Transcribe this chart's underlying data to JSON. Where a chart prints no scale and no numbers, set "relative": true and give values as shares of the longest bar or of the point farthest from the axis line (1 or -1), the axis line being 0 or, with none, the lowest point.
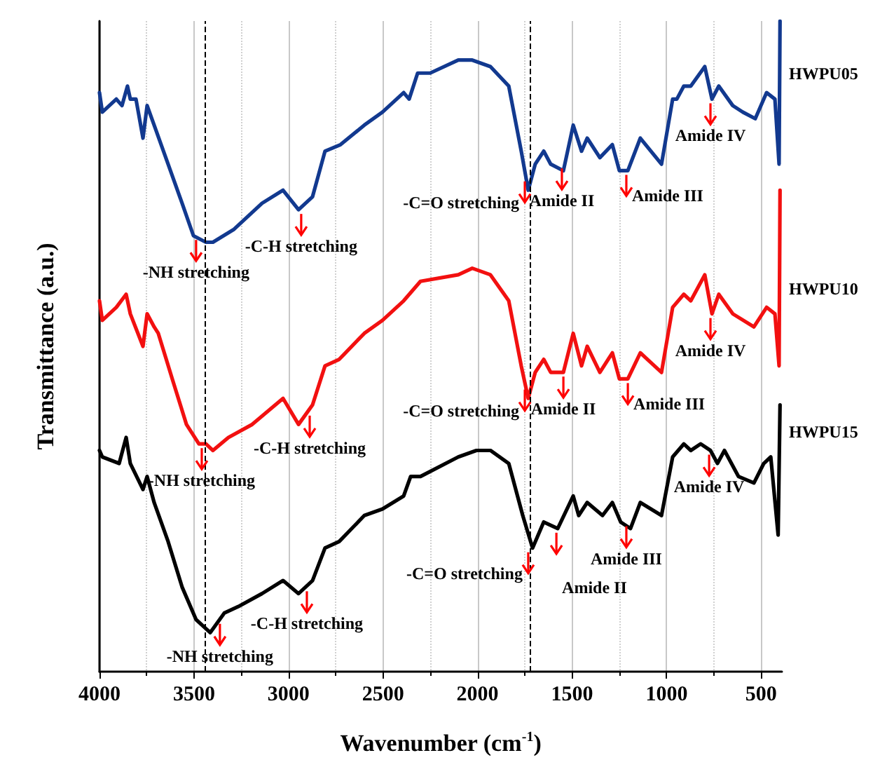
{
  "chart_data": {
    "type": "line",
    "relative": true,
    "marker": "none",
    "grid": "x",
    "xlabel": "Wavenumber (cm$^{-1}$)",
    "ylabel": "Transmittance (a.u.)",
    "xlim": [
      4000,
      390
    ],
    "xticks": [
      4000,
      {
        "value": 3750,
        "label": null
      },
      3500,
      {
        "value": 3250,
        "label": null
      },
      3000,
      {
        "value": 2750,
        "label": null
      },
      2500,
      {
        "value": 2250,
        "label": null
      },
      2000,
      {
        "value": 1750,
        "label": null
      },
      1500,
      {
        "value": 1250,
        "label": null
      },
      1000,
      {
        "value": 750,
        "label": null
      },
      500
    ],
    "series": [
      {
        "name": "HWPU05",
        "color": "#12398f",
        "x": [
          4000,
          3985,
          3911,
          3881,
          3852,
          3837,
          3807,
          3770,
          3748,
          3711,
          3637,
          3563,
          3503,
          3437,
          3400,
          3288,
          3140,
          3029,
          2947,
          2873,
          2807,
          2725,
          2599,
          2503,
          2391,
          2362,
          2317,
          2251,
          2102,
          2028,
          1932,
          1835,
          1769,
          1732,
          1695,
          1650,
          1613,
          1546,
          1494,
          1450,
          1420,
          1353,
          1287,
          1250,
          1205,
          1139,
          1027,
          968,
          946,
          909,
          872,
          798,
          760,
          724,
          650,
          597,
          531,
          471,
          427,
          405,
          400
        ],
        "values": [
          0.89,
          0.86,
          0.88,
          0.87,
          0.9,
          0.88,
          0.88,
          0.82,
          0.87,
          0.84,
          0.78,
          0.72,
          0.67,
          0.66,
          0.66,
          0.68,
          0.72,
          0.74,
          0.71,
          0.73,
          0.8,
          0.81,
          0.84,
          0.86,
          0.89,
          0.88,
          0.92,
          0.92,
          0.94,
          0.94,
          0.93,
          0.9,
          0.8,
          0.74,
          0.78,
          0.8,
          0.78,
          0.77,
          0.84,
          0.8,
          0.82,
          0.79,
          0.81,
          0.77,
          0.77,
          0.82,
          0.78,
          0.88,
          0.88,
          0.9,
          0.9,
          0.93,
          0.88,
          0.9,
          0.87,
          0.86,
          0.85,
          0.89,
          0.88,
          0.78,
          1.0
        ]
      },
      {
        "name": "HWPU10",
        "color": "#f21010",
        "x": [
          4000,
          3985,
          3911,
          3859,
          3837,
          3770,
          3748,
          3711,
          3689,
          3615,
          3540,
          3474,
          3437,
          3400,
          3318,
          3192,
          3029,
          2947,
          2873,
          2807,
          2732,
          2599,
          2503,
          2391,
          2302,
          2102,
          2028,
          1932,
          1835,
          1769,
          1732,
          1695,
          1650,
          1613,
          1546,
          1494,
          1450,
          1420,
          1353,
          1287,
          1250,
          1205,
          1139,
          1027,
          968,
          909,
          872,
          798,
          760,
          724,
          650,
          538,
          471,
          427,
          405,
          400
        ],
        "values": [
          0.57,
          0.54,
          0.56,
          0.58,
          0.55,
          0.5,
          0.55,
          0.53,
          0.52,
          0.45,
          0.38,
          0.35,
          0.35,
          0.34,
          0.36,
          0.38,
          0.42,
          0.38,
          0.41,
          0.47,
          0.48,
          0.52,
          0.54,
          0.57,
          0.6,
          0.61,
          0.62,
          0.61,
          0.57,
          0.47,
          0.42,
          0.46,
          0.48,
          0.46,
          0.46,
          0.52,
          0.47,
          0.5,
          0.46,
          0.49,
          0.45,
          0.45,
          0.49,
          0.46,
          0.56,
          0.58,
          0.57,
          0.61,
          0.55,
          0.58,
          0.55,
          0.53,
          0.56,
          0.55,
          0.47,
          0.74
        ]
      },
      {
        "name": "HWPU15",
        "color": "#000000",
        "x": [
          4000,
          3985,
          3896,
          3859,
          3837,
          3770,
          3748,
          3711,
          3637,
          3563,
          3489,
          3414,
          3340,
          3266,
          3140,
          3029,
          2947,
          2873,
          2807,
          2732,
          2599,
          2503,
          2391,
          2354,
          2302,
          2102,
          2006,
          1932,
          1835,
          1761,
          1709,
          1650,
          1576,
          1494,
          1465,
          1420,
          1339,
          1287,
          1243,
          1191,
          1139,
          1027,
          968,
          909,
          872,
          820,
          768,
          731,
          694,
          620,
          538,
          486,
          449,
          410,
          400
        ],
        "values": [
          0.34,
          0.33,
          0.32,
          0.36,
          0.32,
          0.28,
          0.3,
          0.26,
          0.2,
          0.13,
          0.08,
          0.06,
          0.09,
          0.1,
          0.12,
          0.14,
          0.12,
          0.14,
          0.19,
          0.2,
          0.24,
          0.25,
          0.27,
          0.3,
          0.3,
          0.33,
          0.34,
          0.34,
          0.32,
          0.24,
          0.19,
          0.23,
          0.22,
          0.27,
          0.24,
          0.26,
          0.24,
          0.26,
          0.23,
          0.22,
          0.26,
          0.24,
          0.33,
          0.35,
          0.34,
          0.35,
          0.34,
          0.32,
          0.34,
          0.3,
          0.29,
          0.32,
          0.33,
          0.21,
          0.41
        ]
      }
    ],
    "ref_lines": [
      {
        "axis": "x",
        "value": 3440,
        "color": "#000000",
        "line_style": "dashed"
      },
      {
        "axis": "x",
        "value": 1720,
        "color": "#000000",
        "line_style": "dashed"
      }
    ],
    "annotations": [
      {
        "text": "-NH stretching",
        "x": 3489,
        "y": 0.67
      },
      {
        "text": "-C-H stretching",
        "x": 2933,
        "y": 0.71
      },
      {
        "text": "-C=O stretching",
        "x": 1750,
        "y": 0.76
      },
      {
        "text": "Amide II",
        "x": 1554,
        "y": 0.78
      },
      {
        "text": "Amide III",
        "x": 1213,
        "y": 0.77
      },
      {
        "text": "Amide IV",
        "x": 768,
        "y": 0.88
      },
      {
        "text": "-NH stretching",
        "x": 3459,
        "y": 0.35
      },
      {
        "text": "-C-H stretching",
        "x": 2888,
        "y": 0.4
      },
      {
        "text": "-C=O stretching",
        "x": 1750,
        "y": 0.44
      },
      {
        "text": "Amide II",
        "x": 1546,
        "y": 0.46
      },
      {
        "text": "Amide III",
        "x": 1205,
        "y": 0.45
      },
      {
        "text": "Amide IV",
        "x": 768,
        "y": 0.55
      },
      {
        "text": "-NH stretching",
        "x": 3363,
        "y": 0.08
      },
      {
        "text": "-C-H stretching",
        "x": 2903,
        "y": 0.13
      },
      {
        "text": "-C=O stretching",
        "x": 1732,
        "y": 0.19
      },
      {
        "text": "Amide II",
        "x": 1583,
        "y": 0.22
      },
      {
        "text": "Amide III",
        "x": 1213,
        "y": 0.23
      },
      {
        "text": "Amide IV",
        "x": 775,
        "y": 0.34
      }
    ]
  }
}
